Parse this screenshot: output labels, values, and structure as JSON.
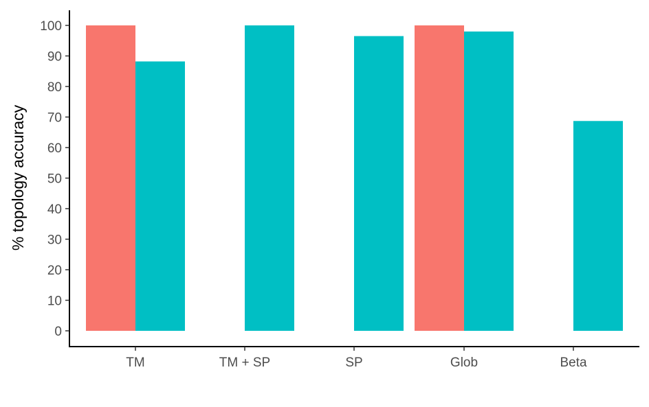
{
  "chart_data": {
    "type": "bar",
    "title": "",
    "xlabel": "",
    "ylabel": "% topology accuracy",
    "categories": [
      "TM",
      "TM + SP",
      "SP",
      "Glob",
      "Beta"
    ],
    "ylim": [
      -5,
      105
    ],
    "yticks": [
      0,
      10,
      20,
      30,
      40,
      50,
      60,
      70,
      80,
      90,
      100
    ],
    "grid": false,
    "legend": "none",
    "series": [
      {
        "color": "#F8766D",
        "values": [
          100,
          null,
          null,
          100,
          null
        ]
      },
      {
        "color": "#00BFC4",
        "values": [
          88.2,
          100,
          96.5,
          98,
          68.7
        ]
      }
    ]
  },
  "colors": {
    "series_1": "#F8766D",
    "series_2": "#00BFC4",
    "axis": "#000000",
    "tick_text": "#4d4d4d"
  }
}
